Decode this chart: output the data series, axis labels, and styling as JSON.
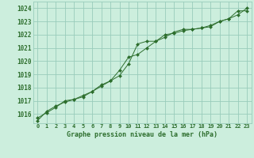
{
  "title": "Graphe pression niveau de la mer (hPa)",
  "background_color": "#cceedd",
  "grid_color": "#99ccbb",
  "line_color": "#2d6e2d",
  "marker_color": "#2d6e2d",
  "x_labels": [
    "0",
    "1",
    "2",
    "3",
    "4",
    "5",
    "6",
    "7",
    "8",
    "9",
    "10",
    "11",
    "12",
    "13",
    "14",
    "15",
    "16",
    "17",
    "18",
    "19",
    "20",
    "21",
    "22",
    "23"
  ],
  "ylim": [
    1015.3,
    1024.5
  ],
  "xlim": [
    -0.5,
    23.5
  ],
  "yticks": [
    1016,
    1017,
    1018,
    1019,
    1020,
    1021,
    1022,
    1023,
    1024
  ],
  "line1_x": [
    0,
    1,
    2,
    3,
    4,
    5,
    6,
    7,
    8,
    9,
    10,
    11,
    12,
    13,
    14,
    15,
    16,
    17,
    18,
    19,
    20,
    21,
    22,
    23
  ],
  "line1_y": [
    1015.5,
    1016.2,
    1016.6,
    1016.9,
    1017.1,
    1017.4,
    1017.7,
    1018.1,
    1018.5,
    1018.9,
    1019.8,
    1021.3,
    1021.5,
    1021.5,
    1022.0,
    1022.1,
    1022.3,
    1022.4,
    1022.5,
    1022.6,
    1023.0,
    1023.2,
    1023.5,
    1024.0
  ],
  "line2_x": [
    0,
    1,
    2,
    3,
    4,
    5,
    6,
    7,
    8,
    9,
    10,
    11,
    12,
    13,
    14,
    15,
    16,
    17,
    18,
    19,
    20,
    21,
    22,
    23
  ],
  "line2_y": [
    1015.7,
    1016.1,
    1016.5,
    1017.0,
    1017.1,
    1017.3,
    1017.7,
    1018.2,
    1018.5,
    1019.3,
    1020.3,
    1020.5,
    1021.0,
    1021.5,
    1021.8,
    1022.2,
    1022.4,
    1022.4,
    1022.5,
    1022.7,
    1023.0,
    1023.2,
    1023.8,
    1023.8
  ]
}
